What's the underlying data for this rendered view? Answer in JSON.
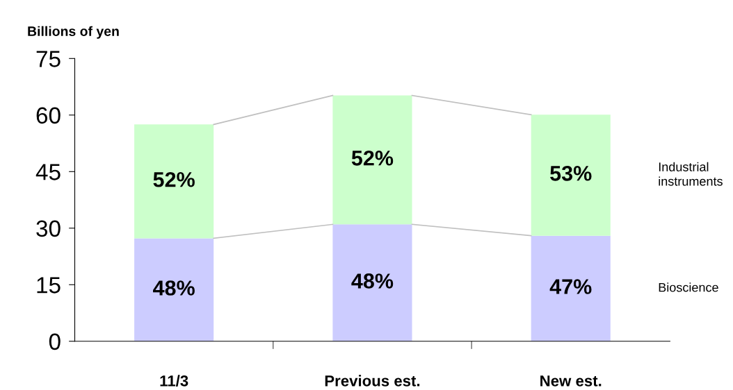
{
  "chart_data": {
    "type": "bar",
    "stacked": true,
    "ylabel": "Billions of yen",
    "categories": [
      "11/3",
      "Previous est.",
      "New est."
    ],
    "series": [
      {
        "name": "Bioscience",
        "color": "#ccccff",
        "values": [
          27.3,
          31.0,
          28.0
        ]
      },
      {
        "name": "Industrial instruments",
        "color": "#ccffcc",
        "values": [
          30.2,
          34.2,
          32.1
        ]
      }
    ],
    "annotations": [
      "48%",
      "48%",
      "47%",
      "52%",
      "52%",
      "53%"
    ],
    "ylim": [
      0,
      75
    ],
    "yticks": [
      0,
      15,
      30,
      45,
      60,
      75
    ],
    "grid": false,
    "legend": "right"
  }
}
